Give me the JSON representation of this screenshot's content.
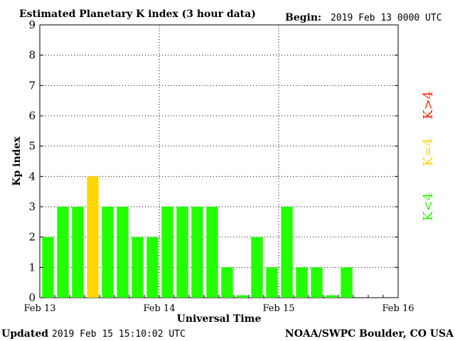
{
  "header": {
    "title": "Estimated Planetary K index (3 hour data)",
    "begin_label": "Begin:",
    "begin_value": "2019 Feb 13 0000 UTC"
  },
  "footer": {
    "updated_label": "Updated",
    "updated_value": "2019 Feb 15 15:10:02 UTC",
    "credit": "NOAA/SWPC Boulder, CO USA"
  },
  "legend": {
    "k_lt_4": "K<4",
    "k_eq_4": "K=4",
    "k_gt_4": "K>4"
  },
  "colors": {
    "green": "#22ff00",
    "yellow": "#ffd700",
    "red": "#ff2a00",
    "grid": "#000000"
  },
  "chart_data": {
    "type": "bar",
    "title": "Estimated Planetary K index (3 hour data)",
    "xlabel": "Universal Time",
    "ylabel": "Kp index",
    "ylim": [
      0,
      9
    ],
    "yticks": [
      "0",
      "1",
      "2",
      "3",
      "4",
      "5",
      "6",
      "7",
      "8",
      "9"
    ],
    "xticks": [
      "Feb 13",
      "Feb 14",
      "Feb 15",
      "Feb 16"
    ],
    "slots_total": 24,
    "grid": true,
    "values": [
      2,
      3,
      3,
      4,
      3,
      3,
      2,
      2,
      3,
      3,
      3,
      3,
      1,
      0,
      2,
      1,
      3,
      1,
      1,
      0,
      1
    ]
  }
}
